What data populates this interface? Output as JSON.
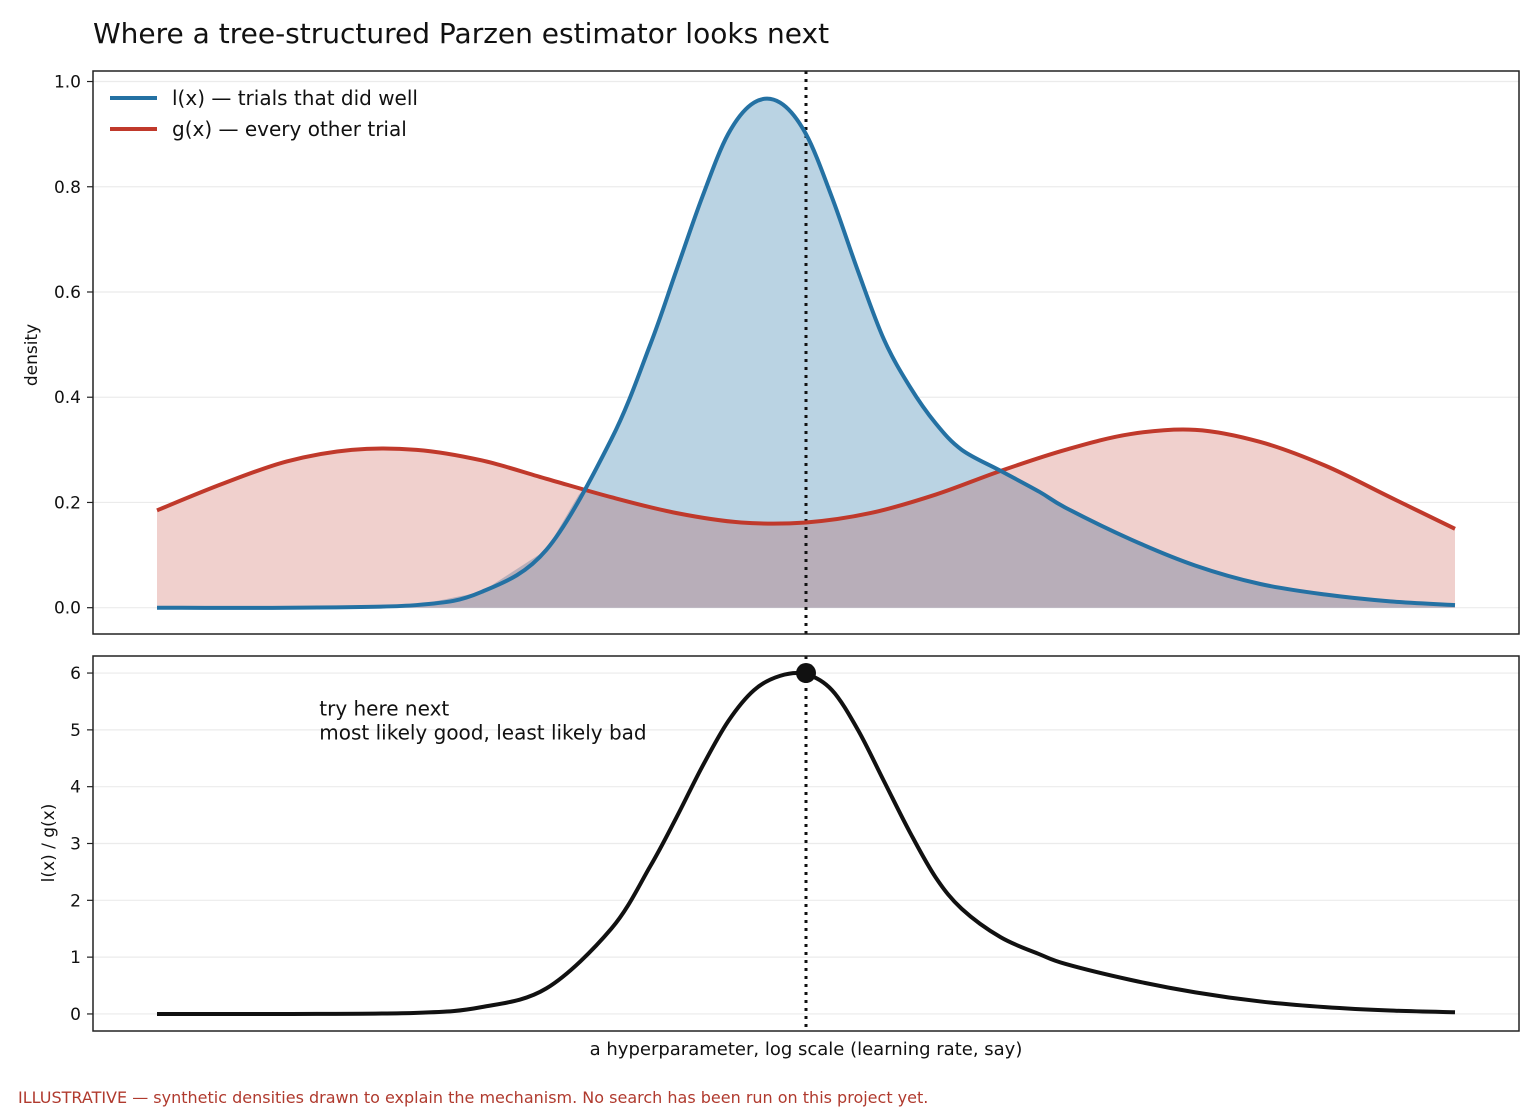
{
  "title": "Where a tree-structured Parzen estimator looks next",
  "footnote": "ILLUSTRATIVE — synthetic densities drawn to explain the mechanism. No search has been run on this project yet.",
  "colors": {
    "good": "#2471a3",
    "good_fill": "#bad3e3",
    "bad": "#c0392b",
    "bad_fill": "#f0d0cd",
    "overlap_fill": "#b8aeb9",
    "ratio": "#111111",
    "footnote": "#b03a2e"
  },
  "chart_data": [
    {
      "type": "area",
      "ylabel": "density",
      "xlabel": "",
      "ylim": [
        -0.05,
        1.02
      ],
      "yticks": [
        "0.0",
        "0.2",
        "0.4",
        "0.6",
        "0.8",
        "1.0"
      ],
      "grid": true,
      "legend_position": "top-left",
      "x_tick_labels": "none",
      "x_range": [
        -5,
        5
      ],
      "series": [
        {
          "name": "l(x) — trials that did well",
          "x": [
            -5,
            -4,
            -3,
            -2.5,
            -2,
            -1.5,
            -1.2,
            -1,
            -0.8,
            -0.6,
            -0.4,
            -0.2,
            0,
            0.2,
            0.4,
            0.6,
            0.8,
            1,
            1.2,
            1.5,
            1.8,
            2,
            2.5,
            3,
            3.5,
            4,
            4.5,
            5
          ],
          "y": [
            0.0,
            0.0,
            0.005,
            0.03,
            0.11,
            0.32,
            0.5,
            0.64,
            0.78,
            0.9,
            0.96,
            0.96,
            0.9,
            0.78,
            0.64,
            0.51,
            0.42,
            0.35,
            0.3,
            0.26,
            0.22,
            0.19,
            0.13,
            0.08,
            0.045,
            0.025,
            0.012,
            0.005
          ]
        },
        {
          "name": "g(x) — every other trial",
          "x": [
            -5,
            -4.5,
            -4,
            -3.5,
            -3,
            -2.5,
            -2,
            -1.5,
            -1,
            -0.5,
            0,
            0.5,
            1,
            1.5,
            2,
            2.5,
            3,
            3.5,
            4,
            4.5,
            5
          ],
          "y": [
            0.185,
            0.235,
            0.278,
            0.3,
            0.3,
            0.28,
            0.245,
            0.21,
            0.18,
            0.162,
            0.162,
            0.18,
            0.215,
            0.26,
            0.3,
            0.33,
            0.338,
            0.315,
            0.27,
            0.21,
            0.15
          ]
        }
      ],
      "marker_line_x": 0
    },
    {
      "type": "line",
      "ylabel": "l(x) / g(x)",
      "xlabel": "a hyperparameter, log scale (learning rate, say)",
      "ylim": [
        -0.3,
        6.3
      ],
      "yticks": [
        "0",
        "1",
        "2",
        "3",
        "4",
        "5",
        "6"
      ],
      "grid": true,
      "x_tick_labels": "none",
      "x_range": [
        -5,
        5
      ],
      "series": [
        {
          "name": "",
          "x": [
            -5,
            -4,
            -3,
            -2.5,
            -2,
            -1.5,
            -1.2,
            -1,
            -0.8,
            -0.6,
            -0.4,
            -0.2,
            0,
            0.2,
            0.4,
            0.6,
            0.8,
            1,
            1.2,
            1.5,
            1.8,
            2,
            2.5,
            3,
            3.5,
            4,
            4.5,
            5
          ],
          "y": [
            0.0,
            0.0,
            0.02,
            0.12,
            0.45,
            1.5,
            2.6,
            3.45,
            4.35,
            5.15,
            5.7,
            5.95,
            5.98,
            5.7,
            5.0,
            4.1,
            3.2,
            2.4,
            1.85,
            1.35,
            1.05,
            0.88,
            0.6,
            0.38,
            0.22,
            0.12,
            0.06,
            0.03
          ]
        }
      ],
      "marker_line_x": 0,
      "peak_point": {
        "x": 0,
        "y": 6.0
      },
      "annotation": {
        "line1": "try here next",
        "line2": "most likely good, least likely bad",
        "x": -3.75,
        "y": 5.25
      }
    }
  ]
}
